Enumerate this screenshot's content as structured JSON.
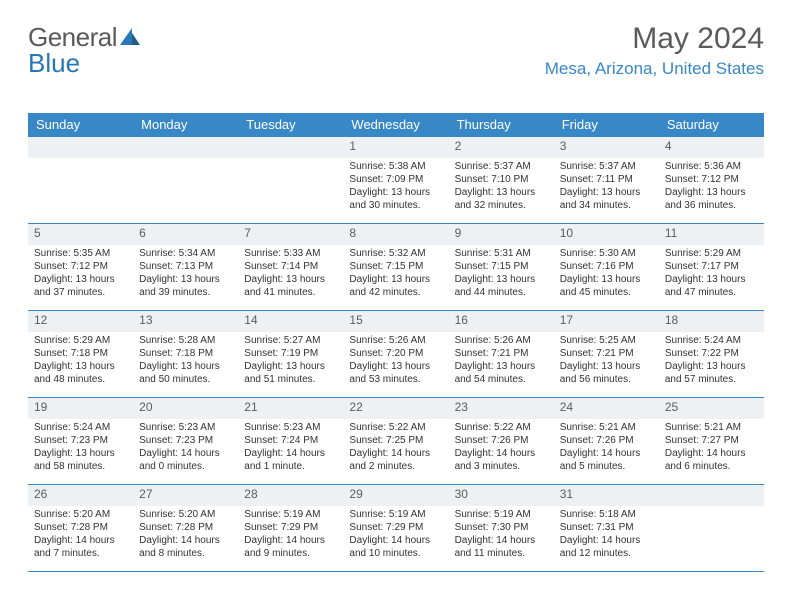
{
  "brand": {
    "part1": "General",
    "part2": "Blue"
  },
  "title": "May 2024",
  "location": "Mesa, Arizona, United States",
  "colors": {
    "headerBlue": "#3887c7",
    "dayBarGray": "#eef1f3",
    "textGray": "#5a5a5a",
    "bodyText": "#333333"
  },
  "weekdays": [
    "Sunday",
    "Monday",
    "Tuesday",
    "Wednesday",
    "Thursday",
    "Friday",
    "Saturday"
  ],
  "firstDayOffset": 3,
  "days": [
    {
      "n": "1",
      "sunrise": "5:38 AM",
      "sunset": "7:09 PM",
      "daylight": "13 hours and 30 minutes."
    },
    {
      "n": "2",
      "sunrise": "5:37 AM",
      "sunset": "7:10 PM",
      "daylight": "13 hours and 32 minutes."
    },
    {
      "n": "3",
      "sunrise": "5:37 AM",
      "sunset": "7:11 PM",
      "daylight": "13 hours and 34 minutes."
    },
    {
      "n": "4",
      "sunrise": "5:36 AM",
      "sunset": "7:12 PM",
      "daylight": "13 hours and 36 minutes."
    },
    {
      "n": "5",
      "sunrise": "5:35 AM",
      "sunset": "7:12 PM",
      "daylight": "13 hours and 37 minutes."
    },
    {
      "n": "6",
      "sunrise": "5:34 AM",
      "sunset": "7:13 PM",
      "daylight": "13 hours and 39 minutes."
    },
    {
      "n": "7",
      "sunrise": "5:33 AM",
      "sunset": "7:14 PM",
      "daylight": "13 hours and 41 minutes."
    },
    {
      "n": "8",
      "sunrise": "5:32 AM",
      "sunset": "7:15 PM",
      "daylight": "13 hours and 42 minutes."
    },
    {
      "n": "9",
      "sunrise": "5:31 AM",
      "sunset": "7:15 PM",
      "daylight": "13 hours and 44 minutes."
    },
    {
      "n": "10",
      "sunrise": "5:30 AM",
      "sunset": "7:16 PM",
      "daylight": "13 hours and 45 minutes."
    },
    {
      "n": "11",
      "sunrise": "5:29 AM",
      "sunset": "7:17 PM",
      "daylight": "13 hours and 47 minutes."
    },
    {
      "n": "12",
      "sunrise": "5:29 AM",
      "sunset": "7:18 PM",
      "daylight": "13 hours and 48 minutes."
    },
    {
      "n": "13",
      "sunrise": "5:28 AM",
      "sunset": "7:18 PM",
      "daylight": "13 hours and 50 minutes."
    },
    {
      "n": "14",
      "sunrise": "5:27 AM",
      "sunset": "7:19 PM",
      "daylight": "13 hours and 51 minutes."
    },
    {
      "n": "15",
      "sunrise": "5:26 AM",
      "sunset": "7:20 PM",
      "daylight": "13 hours and 53 minutes."
    },
    {
      "n": "16",
      "sunrise": "5:26 AM",
      "sunset": "7:21 PM",
      "daylight": "13 hours and 54 minutes."
    },
    {
      "n": "17",
      "sunrise": "5:25 AM",
      "sunset": "7:21 PM",
      "daylight": "13 hours and 56 minutes."
    },
    {
      "n": "18",
      "sunrise": "5:24 AM",
      "sunset": "7:22 PM",
      "daylight": "13 hours and 57 minutes."
    },
    {
      "n": "19",
      "sunrise": "5:24 AM",
      "sunset": "7:23 PM",
      "daylight": "13 hours and 58 minutes."
    },
    {
      "n": "20",
      "sunrise": "5:23 AM",
      "sunset": "7:23 PM",
      "daylight": "14 hours and 0 minutes."
    },
    {
      "n": "21",
      "sunrise": "5:23 AM",
      "sunset": "7:24 PM",
      "daylight": "14 hours and 1 minute."
    },
    {
      "n": "22",
      "sunrise": "5:22 AM",
      "sunset": "7:25 PM",
      "daylight": "14 hours and 2 minutes."
    },
    {
      "n": "23",
      "sunrise": "5:22 AM",
      "sunset": "7:26 PM",
      "daylight": "14 hours and 3 minutes."
    },
    {
      "n": "24",
      "sunrise": "5:21 AM",
      "sunset": "7:26 PM",
      "daylight": "14 hours and 5 minutes."
    },
    {
      "n": "25",
      "sunrise": "5:21 AM",
      "sunset": "7:27 PM",
      "daylight": "14 hours and 6 minutes."
    },
    {
      "n": "26",
      "sunrise": "5:20 AM",
      "sunset": "7:28 PM",
      "daylight": "14 hours and 7 minutes."
    },
    {
      "n": "27",
      "sunrise": "5:20 AM",
      "sunset": "7:28 PM",
      "daylight": "14 hours and 8 minutes."
    },
    {
      "n": "28",
      "sunrise": "5:19 AM",
      "sunset": "7:29 PM",
      "daylight": "14 hours and 9 minutes."
    },
    {
      "n": "29",
      "sunrise": "5:19 AM",
      "sunset": "7:29 PM",
      "daylight": "14 hours and 10 minutes."
    },
    {
      "n": "30",
      "sunrise": "5:19 AM",
      "sunset": "7:30 PM",
      "daylight": "14 hours and 11 minutes."
    },
    {
      "n": "31",
      "sunrise": "5:18 AM",
      "sunset": "7:31 PM",
      "daylight": "14 hours and 12 minutes."
    }
  ],
  "labels": {
    "sunrise": "Sunrise:",
    "sunset": "Sunset:",
    "daylight": "Daylight:"
  }
}
